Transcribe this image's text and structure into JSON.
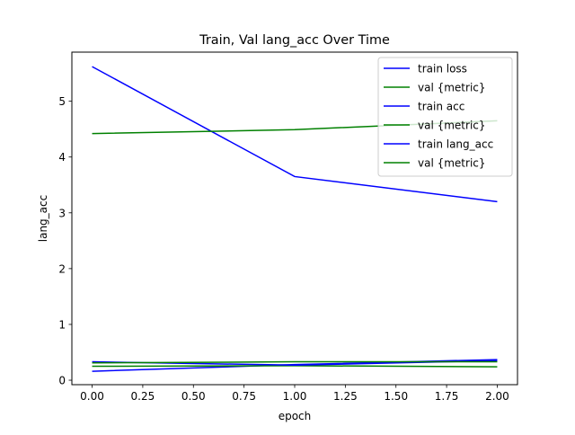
{
  "chart_data": {
    "type": "line",
    "title": "Train, Val lang_acc Over Time",
    "xlabel": "epoch",
    "ylabel": "lang_acc",
    "xlim": [
      -0.1,
      2.1
    ],
    "ylim": [
      -0.08,
      5.88
    ],
    "xticks": [
      0.0,
      0.25,
      0.5,
      0.75,
      1.0,
      1.25,
      1.5,
      1.75,
      2.0
    ],
    "xtick_labels": [
      "0.00",
      "0.25",
      "0.50",
      "0.75",
      "1.00",
      "1.25",
      "1.50",
      "1.75",
      "2.00"
    ],
    "yticks": [
      0,
      1,
      2,
      3,
      4,
      5
    ],
    "ytick_labels": [
      "0",
      "1",
      "2",
      "3",
      "4",
      "5"
    ],
    "grid": false,
    "legend_position": "top-right",
    "x": [
      0,
      1,
      2
    ],
    "series": [
      {
        "name": "train loss",
        "color": "#0000ff",
        "values": [
          5.62,
          3.65,
          3.2
        ]
      },
      {
        "name": "val {metric}",
        "color": "#008000",
        "values": [
          4.42,
          4.49,
          4.65
        ]
      },
      {
        "name": "train acc",
        "color": "#0000ff",
        "values": [
          0.16,
          0.28,
          0.37
        ]
      },
      {
        "name": "val {metric}",
        "color": "#008000",
        "values": [
          0.25,
          0.26,
          0.24
        ]
      },
      {
        "name": "train lang_acc",
        "color": "#0000ff",
        "values": [
          0.33,
          0.27,
          0.35
        ]
      },
      {
        "name": "val {metric}",
        "color": "#008000",
        "values": [
          0.31,
          0.33,
          0.33
        ]
      }
    ]
  }
}
